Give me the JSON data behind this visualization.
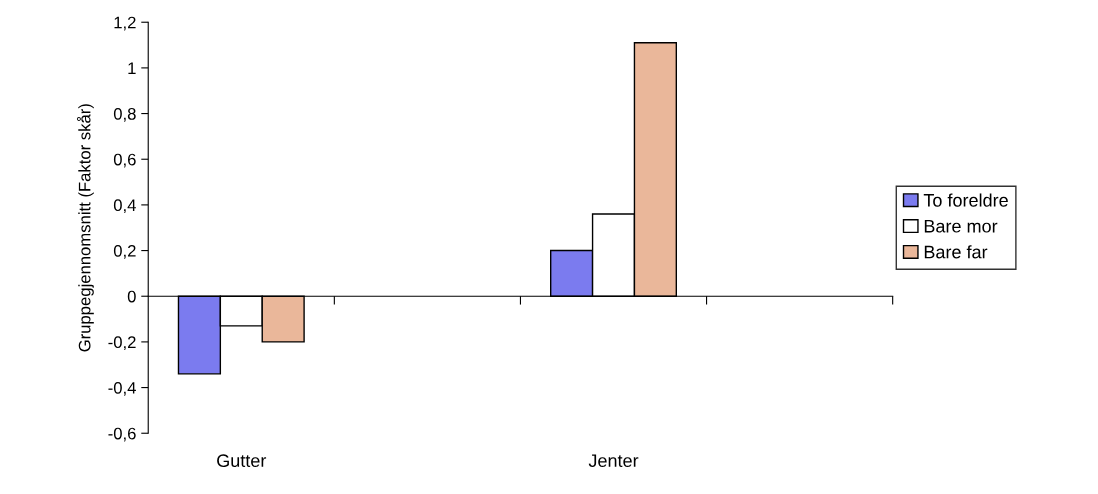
{
  "chart_data": {
    "type": "bar",
    "ylabel": "Gruppegjennomsnitt (Faktor skår)",
    "categories": [
      "Gutter",
      null,
      "Jenter",
      null
    ],
    "series": [
      {
        "name": "To foreldre",
        "color": "#7b7bef",
        "values": [
          -0.34,
          null,
          0.2,
          null
        ]
      },
      {
        "name": "Bare mor",
        "color": "#ffffff",
        "values": [
          -0.13,
          null,
          0.36,
          null
        ]
      },
      {
        "name": "Bare far",
        "color": "#eab79a",
        "values": [
          -0.2,
          null,
          1.11,
          null
        ]
      }
    ],
    "ylim": [
      -0.6,
      1.2
    ],
    "yticks": [
      {
        "value": -0.6,
        "label": "-0,6"
      },
      {
        "value": -0.4,
        "label": "-0,4"
      },
      {
        "value": -0.2,
        "label": "-0,2"
      },
      0,
      {
        "value": 0.2,
        "label": "0,2"
      },
      {
        "value": 0.4,
        "label": "0,4"
      },
      {
        "value": 0.6,
        "label": "0,6"
      },
      {
        "value": 0.8,
        "label": "0,8"
      },
      1,
      {
        "value": 1.2,
        "label": "1,2"
      }
    ],
    "legend": "right"
  }
}
